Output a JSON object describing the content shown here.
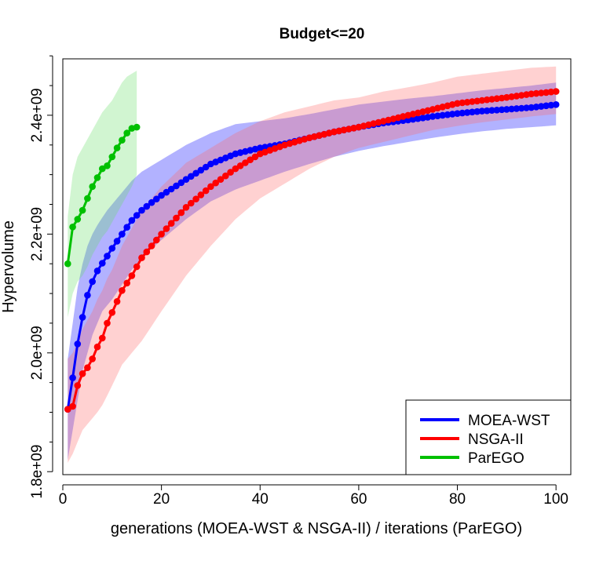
{
  "chart_data": {
    "type": "line",
    "title": "Budget<=20",
    "xlabel": "generations (MOEA-WST & NSGA-II) / iterations (ParEGO)",
    "ylabel": "Hypervolume",
    "xlim": [
      0,
      103
    ],
    "ylim": [
      1795000000.0,
      2495000000.0
    ],
    "x_ticks": [
      0,
      20,
      40,
      60,
      80,
      100
    ],
    "x_tick_labels": [
      "0",
      "20",
      "40",
      "60",
      "80",
      "100"
    ],
    "y_ticks": [
      1800000000.0,
      2000000000.0,
      2200000000.0,
      2400000000.0
    ],
    "y_tick_labels": [
      "1.8e+09",
      "2.0e+09",
      "2.2e+09",
      "2.4e+09"
    ],
    "legend_position": "bottom-right",
    "series": [
      {
        "name": "MOEA-WST",
        "color": "#0000ff",
        "band_color": "#0000ff",
        "anchors_x": [
          1,
          2,
          3,
          4,
          5,
          6,
          7,
          8,
          9,
          10,
          12,
          14,
          16,
          18,
          20,
          25,
          30,
          35,
          40,
          45,
          50,
          55,
          60,
          65,
          70,
          75,
          80,
          85,
          90,
          95,
          100
        ],
        "anchors_y": [
          1905000000.0,
          1958000000.0,
          2015000000.0,
          2060000000.0,
          2097000000.0,
          2120000000.0,
          2138000000.0,
          2151000000.0,
          2163000000.0,
          2176000000.0,
          2200000000.0,
          2223000000.0,
          2240000000.0,
          2253000000.0,
          2265000000.0,
          2292000000.0,
          2318000000.0,
          2335000000.0,
          2345000000.0,
          2352000000.0,
          2362000000.0,
          2372000000.0,
          2380000000.0,
          2387000000.0,
          2392000000.0,
          2398000000.0,
          2403000000.0,
          2407000000.0,
          2410000000.0,
          2413000000.0,
          2418000000.0
        ],
        "band_lower_y": [
          1820000000.0,
          1870000000.0,
          1920000000.0,
          1970000000.0,
          2000000000.0,
          2030000000.0,
          2050000000.0,
          2070000000.0,
          2080000000.0,
          2090000000.0,
          2115000000.0,
          2140000000.0,
          2160000000.0,
          2175000000.0,
          2190000000.0,
          2225000000.0,
          2255000000.0,
          2275000000.0,
          2290000000.0,
          2305000000.0,
          2318000000.0,
          2330000000.0,
          2340000000.0,
          2348000000.0,
          2355000000.0,
          2362000000.0,
          2368000000.0,
          2373000000.0,
          2377000000.0,
          2380000000.0,
          2383000000.0
        ],
        "band_upper_y": [
          1990000000.0,
          2050000000.0,
          2110000000.0,
          2150000000.0,
          2180000000.0,
          2200000000.0,
          2215000000.0,
          2228000000.0,
          2240000000.0,
          2250000000.0,
          2270000000.0,
          2290000000.0,
          2305000000.0,
          2315000000.0,
          2325000000.0,
          2350000000.0,
          2370000000.0,
          2385000000.0,
          2390000000.0,
          2395000000.0,
          2402000000.0,
          2410000000.0,
          2418000000.0,
          2423000000.0,
          2428000000.0,
          2432000000.0,
          2437000000.0,
          2442000000.0,
          2446000000.0,
          2450000000.0,
          2455000000.0
        ]
      },
      {
        "name": "NSGA-II",
        "color": "#ff0000",
        "band_color": "#ff6666",
        "anchors_x": [
          1,
          2,
          3,
          4,
          5,
          6,
          7,
          8,
          9,
          10,
          12,
          14,
          16,
          18,
          20,
          25,
          30,
          35,
          40,
          45,
          50,
          55,
          60,
          65,
          70,
          75,
          80,
          85,
          90,
          95,
          100
        ],
        "anchors_y": [
          1905000000.0,
          1910000000.0,
          1945000000.0,
          1965000000.0,
          1975000000.0,
          1990000000.0,
          2010000000.0,
          2025000000.0,
          2050000000.0,
          2068000000.0,
          2105000000.0,
          2130000000.0,
          2160000000.0,
          2180000000.0,
          2200000000.0,
          2245000000.0,
          2280000000.0,
          2310000000.0,
          2335000000.0,
          2350000000.0,
          2362000000.0,
          2372000000.0,
          2380000000.0,
          2390000000.0,
          2400000000.0,
          2410000000.0,
          2420000000.0,
          2425000000.0,
          2430000000.0,
          2436000000.0,
          2440000000.0
        ],
        "band_lower_y": [
          1815000000.0,
          1830000000.0,
          1850000000.0,
          1870000000.0,
          1880000000.0,
          1890000000.0,
          1900000000.0,
          1912000000.0,
          1928000000.0,
          1945000000.0,
          1980000000.0,
          2000000000.0,
          2020000000.0,
          2045000000.0,
          2070000000.0,
          2130000000.0,
          2180000000.0,
          2225000000.0,
          2260000000.0,
          2285000000.0,
          2310000000.0,
          2330000000.0,
          2345000000.0,
          2355000000.0,
          2365000000.0,
          2375000000.0,
          2382000000.0,
          2388000000.0,
          2393000000.0,
          2398000000.0,
          2402000000.0
        ],
        "band_upper_y": [
          1990000000.0,
          2000000000.0,
          2020000000.0,
          2040000000.0,
          2055000000.0,
          2070000000.0,
          2090000000.0,
          2105000000.0,
          2125000000.0,
          2140000000.0,
          2180000000.0,
          2210000000.0,
          2240000000.0,
          2260000000.0,
          2280000000.0,
          2320000000.0,
          2345000000.0,
          2370000000.0,
          2390000000.0,
          2405000000.0,
          2415000000.0,
          2425000000.0,
          2430000000.0,
          2440000000.0,
          2447000000.0,
          2455000000.0,
          2465000000.0,
          2470000000.0,
          2475000000.0,
          2480000000.0,
          2482000000.0
        ]
      },
      {
        "name": "ParEGO",
        "color": "#00c000",
        "band_color": "#66dd66",
        "anchors_x": [
          1,
          2,
          3,
          4,
          5,
          6,
          7,
          8,
          9,
          10,
          11,
          12,
          13,
          14,
          15
        ],
        "anchors_y": [
          2150000000.0,
          2212000000.0,
          2225000000.0,
          2240000000.0,
          2260000000.0,
          2280000000.0,
          2295000000.0,
          2310000000.0,
          2315000000.0,
          2330000000.0,
          2345000000.0,
          2358000000.0,
          2370000000.0,
          2378000000.0,
          2380000000.0
        ],
        "band_lower_y": [
          2060000000.0,
          2100000000.0,
          2120000000.0,
          2130000000.0,
          2145000000.0,
          2165000000.0,
          2180000000.0,
          2195000000.0,
          2205000000.0,
          2220000000.0,
          2235000000.0,
          2250000000.0,
          2265000000.0,
          2280000000.0,
          2300000000.0
        ],
        "band_upper_y": [
          2230000000.0,
          2300000000.0,
          2330000000.0,
          2345000000.0,
          2360000000.0,
          2375000000.0,
          2390000000.0,
          2405000000.0,
          2415000000.0,
          2425000000.0,
          2440000000.0,
          2455000000.0,
          2465000000.0,
          2470000000.0,
          2475000000.0
        ]
      }
    ]
  }
}
